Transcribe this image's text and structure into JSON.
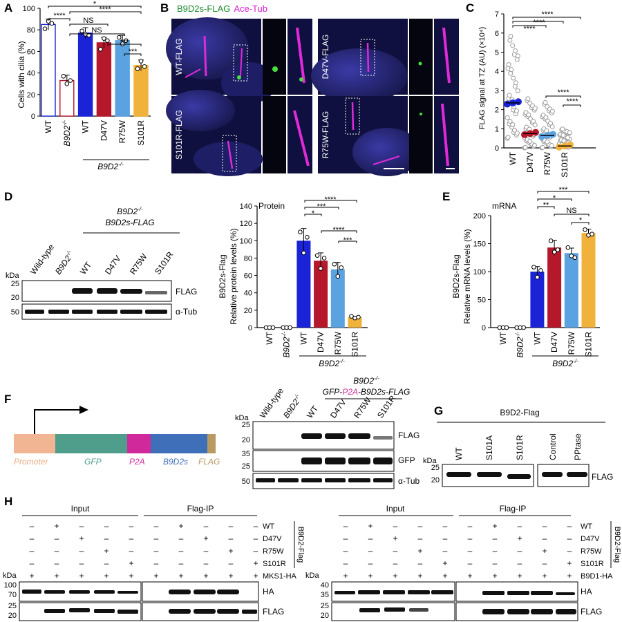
{
  "panels": [
    "A",
    "B",
    "C",
    "D",
    "E",
    "F",
    "G",
    "H"
  ],
  "superscript": "-/-",
  "panelA": {
    "ylabel": "Cells with cilia (%)",
    "ylim": [
      0,
      100
    ],
    "yticks": [
      0,
      20,
      40,
      60,
      80,
      100
    ],
    "categories": [
      "WT",
      "B9D2",
      "WT",
      "D47V",
      "R75W",
      "S101R"
    ],
    "group_label": "B9D2",
    "sig": [
      "****",
      "*",
      "****",
      "NS",
      "NS",
      "***",
      "***"
    ]
  },
  "panelB": {
    "legend_green": "B9D2s-FLAG",
    "legend_magenta": "Ace-Tub",
    "rows": [
      "WT-FLAG",
      "D47V-FLAG",
      "S101R-FLAG",
      "R75W-FLAG"
    ]
  },
  "panelC": {
    "ylabel": "FLAG signal at TZ (AU) (×10⁴)",
    "ylim": [
      0,
      7
    ],
    "yticks": [
      0,
      1,
      2,
      3,
      4,
      5,
      6,
      7
    ],
    "categories": [
      "WT",
      "D47V",
      "R75W",
      "S101R"
    ],
    "means": [
      2.35,
      0.75,
      0.65,
      0.1
    ],
    "sig": [
      "****",
      "****",
      "****",
      "****",
      "****"
    ]
  },
  "panelD": {
    "blot_title1": "B9D2",
    "blot_title2": "B9D2s-FLAG",
    "kda": "kDa",
    "lanes": [
      "Wild-type",
      "B9D2",
      "WT",
      "D47V",
      "R75W",
      "S101R"
    ],
    "markers_top": [
      "25",
      "20"
    ],
    "markers_bottom": [
      "50"
    ],
    "bands": [
      "FLAG",
      "α-Tub"
    ],
    "chart_title": "Protein",
    "ylabel1": "B9D2s-Flag",
    "ylabel2": "Relative protein levels (%)",
    "ylim": [
      0,
      140
    ],
    "yticks": [
      0,
      20,
      40,
      60,
      80,
      100,
      120,
      140
    ],
    "categories": [
      "WT",
      "B9D2",
      "WT",
      "D47V",
      "R75W",
      "S101R"
    ],
    "values": [
      0,
      0,
      100,
      77,
      67,
      12
    ],
    "group_label": "B9D2",
    "sig": [
      "*",
      "***",
      "****",
      "****",
      "***"
    ]
  },
  "panelE": {
    "chart_title": "mRNA",
    "ylabel1": "B9D2s-Flag",
    "ylabel2": "Relative mRNA levels (%)",
    "ylim": [
      0,
      200
    ],
    "yticks": [
      0,
      50,
      100,
      150,
      200
    ],
    "categories": [
      "WT",
      "B9D2",
      "WT",
      "D47V",
      "R75W",
      "S101R"
    ],
    "values": [
      0,
      0,
      100,
      143,
      133,
      169
    ],
    "group_label": "B9D2",
    "sig": [
      "**",
      "*",
      "***",
      "NS",
      "*"
    ]
  },
  "panelF": {
    "construct": [
      "Promoter",
      "GFP",
      "P2A",
      "B9D2s",
      "FLAG"
    ],
    "title1": "B9D2",
    "title2_a": "GFP-",
    "title2_b": "P2A",
    "title2_c": "-B9D2s-FLAG",
    "kda": "kDa",
    "lanes": [
      "Wild-type",
      "B9D2",
      "WT",
      "D47V",
      "R75W",
      "S101R"
    ],
    "m1": [
      "25",
      "20"
    ],
    "m2": [
      "35",
      "25"
    ],
    "m3": [
      "50"
    ],
    "bands": [
      "FLAG",
      "GFP",
      "α-Tub"
    ]
  },
  "panelG": {
    "title": "B9D2-Flag",
    "kda": "kDa",
    "lanes": [
      "WT",
      "S101A",
      "S101R",
      "Control",
      "PPtase"
    ],
    "markers": [
      "25",
      "20"
    ],
    "band": "FLAG"
  },
  "panelH": {
    "left": {
      "input": "Input",
      "ip": "Flag-IP",
      "hcol": "MKS1-HA",
      "m1": [
        "100",
        "70"
      ],
      "m2": [
        "25",
        "20"
      ]
    },
    "right": {
      "input": "Input",
      "ip": "Flag-IP",
      "hcol": "B9D1-HA",
      "m1": [
        "40",
        "35"
      ],
      "m2": [
        "25",
        "20"
      ]
    },
    "rows": [
      "WT",
      "D47V",
      "R75W",
      "S101R"
    ],
    "bracket": "B9D2-Flag",
    "kda": "kDa",
    "bands": [
      "HA",
      "FLAG"
    ],
    "plus": "+",
    "minus": "–"
  }
}
